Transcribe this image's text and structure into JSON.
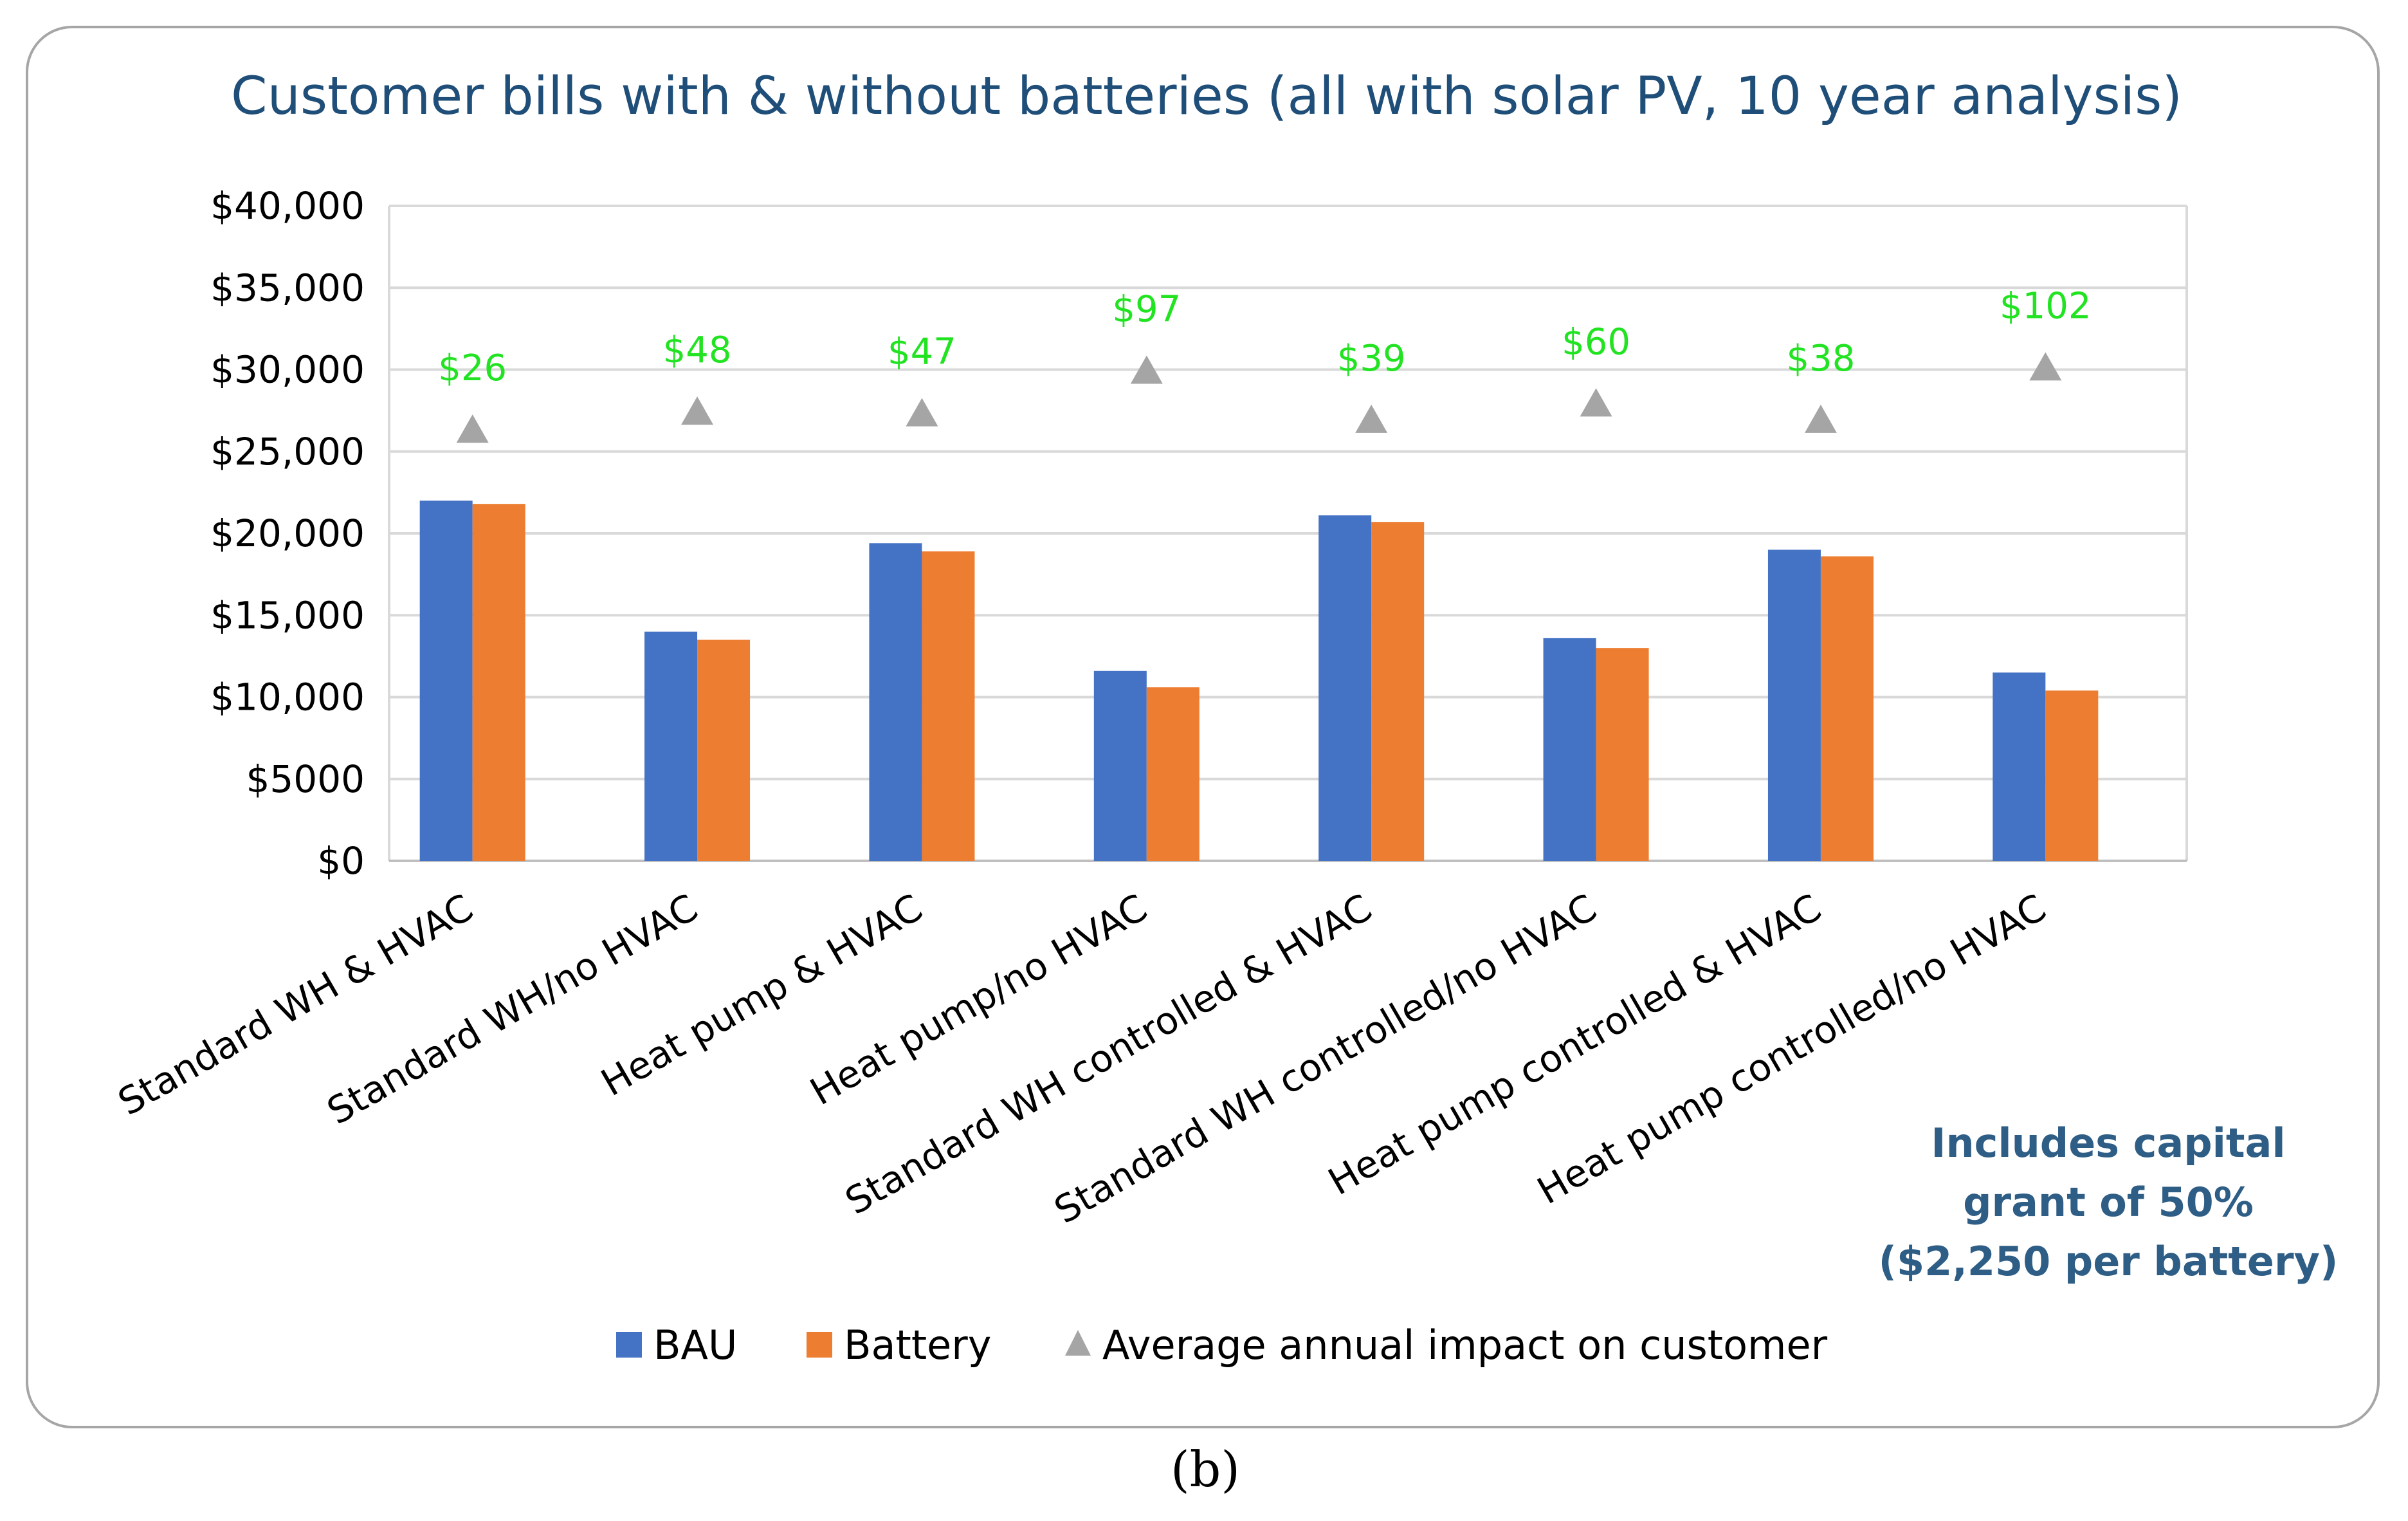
{
  "chart_data": {
    "type": "bar",
    "title": "Customer bills with & without batteries (all with solar PV, 10 year analysis)",
    "xlabel": "",
    "ylabel": "",
    "ylim": [
      0,
      40000
    ],
    "ytick_values": [
      0,
      5000,
      10000,
      15000,
      20000,
      25000,
      30000,
      35000,
      40000
    ],
    "ytick_labels": [
      "$0",
      "$5000",
      "$10,000",
      "$15,000",
      "$20,000",
      "$25,000",
      "$30,000",
      "$35,000",
      "$40,000"
    ],
    "grid": true,
    "categories": [
      "Standard WH & HVAC",
      "Standard WH/no HVAC",
      "Heat pump & HVAC",
      "Heat pump/no HVAC",
      "Standard WH controlled & HVAC",
      "Standard WH controlled/no HVAC",
      "Heat pump controlled & HVAC",
      "Heat pump controlled/no HVAC"
    ],
    "series": [
      {
        "name": "BAU",
        "type": "bar",
        "color": "#4472c4",
        "values": [
          22000,
          14000,
          19400,
          11600,
          21100,
          13600,
          19000,
          11500
        ]
      },
      {
        "name": "Battery",
        "type": "bar",
        "color": "#ed7d31",
        "values": [
          21800,
          13500,
          18900,
          10600,
          20700,
          13000,
          18600,
          10400
        ]
      },
      {
        "name": "Average annual impact on customer",
        "type": "scatter",
        "marker": "triangle",
        "color": "#a5a5a5",
        "values": [
          26400,
          27500,
          27400,
          30000,
          27000,
          28000,
          27000,
          30200
        ]
      }
    ],
    "data_labels": [
      "$26",
      "$48",
      "$47",
      "$97",
      "$39",
      "$60",
      "$38",
      "$102"
    ],
    "legend_position": "bottom"
  },
  "note_lines": [
    "Includes capital",
    "grant of 50%",
    "($2,250 per battery)"
  ],
  "caption": "(b)"
}
